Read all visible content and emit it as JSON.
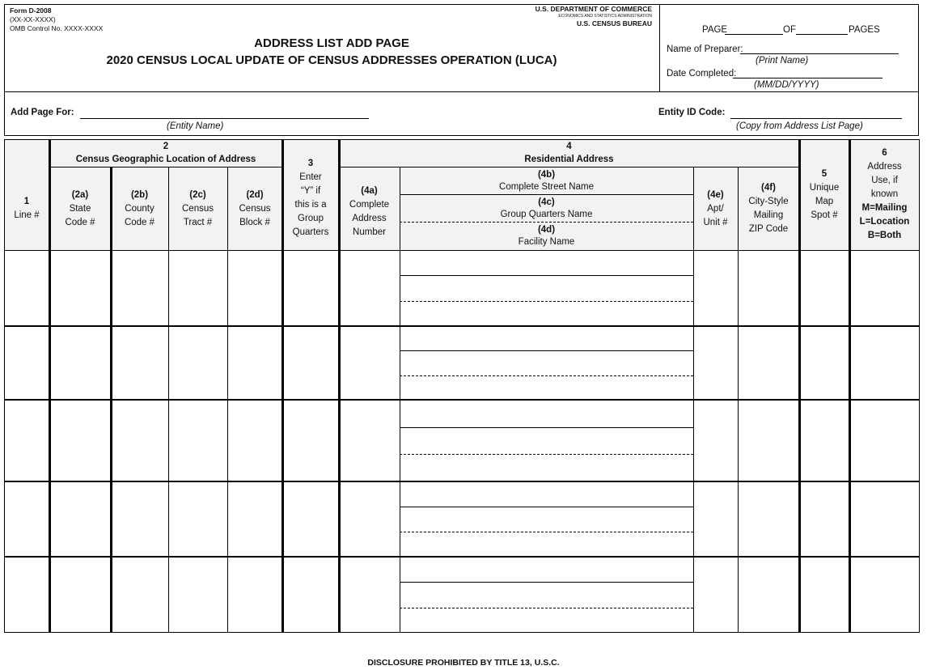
{
  "form": {
    "form_number": "Form D-2008",
    "form_date": "(XX-XX-XXXX)",
    "omb": "OMB Control No. XXXX-XXXX",
    "agency": "U.S. DEPARTMENT OF COMMERCE",
    "sub_agency": "ECONOMICS AND STATISTICS ADMINISTRATION",
    "bureau": "U.S. CENSUS BUREAU",
    "title": "ADDRESS LIST ADD PAGE",
    "subtitle": "2020 CENSUS LOCAL UPDATE OF CENSUS ADDRESSES OPERATION  (LUCA)"
  },
  "page_info": {
    "page_label": "PAGE",
    "of_label": "OF",
    "pages_label": "PAGES",
    "preparer_label": "Name of Preparer:",
    "preparer_hint": "(Print Name)",
    "date_label": "Date Completed:",
    "date_hint": "(MM/DD/YYYY)"
  },
  "entity": {
    "add_page_label": "Add Page For:",
    "entity_hint": "(Entity Name)",
    "id_label": "Entity ID Code:",
    "id_hint": "(Copy from Address List Page)"
  },
  "columns": {
    "c1": {
      "num": "1",
      "label": "Line #"
    },
    "c2": {
      "num": "2",
      "label": "Census Geographic Location of Address"
    },
    "c2a": {
      "num": "(2a)",
      "l1": "State",
      "l2": "Code #"
    },
    "c2b": {
      "num": "(2b)",
      "l1": "County",
      "l2": "Code #"
    },
    "c2c": {
      "num": "(2c)",
      "l1": "Census",
      "l2": "Tract #"
    },
    "c2d": {
      "num": "(2d)",
      "l1": "Census",
      "l2": "Block #"
    },
    "c3": {
      "num": "3",
      "l1": "Enter",
      "l2": "“Y” if",
      "l3": "this is a",
      "l4": "Group",
      "l5": "Quarters"
    },
    "c4": {
      "num": "4",
      "label": "Residential Address"
    },
    "c4a": {
      "num": "(4a)",
      "l1": "Complete",
      "l2": "Address",
      "l3": "Number"
    },
    "c4b": {
      "num": "(4b)",
      "label": "Complete Street Name"
    },
    "c4c": {
      "num": "(4c)",
      "label": "Group Quarters Name"
    },
    "c4d": {
      "num": "(4d)",
      "label": "Facility Name"
    },
    "c4e": {
      "num": "(4e)",
      "l1": "Apt/",
      "l2": "Unit #"
    },
    "c4f": {
      "num": "(4f)",
      "l1": "City-Style",
      "l2": "Mailing",
      "l3": "ZIP Code"
    },
    "c5": {
      "num": "5",
      "l1": "Unique",
      "l2": "Map",
      "l3": "Spot #"
    },
    "c6": {
      "num": "6",
      "l1": "Address",
      "l2": "Use, if",
      "l3": "known",
      "l4": "M=Mailing",
      "l5": "L=Location",
      "l6": "B=Both"
    }
  },
  "footer": "DISCLOSURE PROHIBITED BY TITLE 13, U.S.C."
}
